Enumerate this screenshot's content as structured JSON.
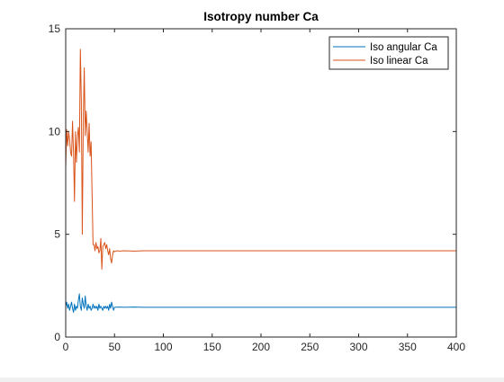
{
  "chart_data": {
    "type": "line",
    "title": "Isotropy number Ca",
    "xlabel": "",
    "ylabel": "",
    "xlim": [
      0,
      400
    ],
    "ylim": [
      0,
      15
    ],
    "xticks": [
      0,
      50,
      100,
      150,
      200,
      250,
      300,
      350,
      400
    ],
    "yticks": [
      0,
      5,
      10,
      15
    ],
    "grid": false,
    "legend_position": "top-right",
    "series": [
      {
        "name": "Iso angular Ca",
        "color": "#0072BD",
        "x": [
          0,
          1,
          2,
          3,
          4,
          5,
          6,
          7,
          8,
          9,
          10,
          11,
          12,
          13,
          14,
          15,
          16,
          17,
          18,
          19,
          20,
          21,
          22,
          23,
          24,
          25,
          26,
          27,
          28,
          29,
          30,
          31,
          32,
          33,
          34,
          35,
          36,
          37,
          38,
          39,
          40,
          41,
          42,
          43,
          44,
          45,
          46,
          47,
          48,
          49,
          50,
          55,
          60,
          70,
          80,
          100,
          150,
          200,
          250,
          300,
          350,
          400
        ],
        "y": [
          1.5,
          1.7,
          1.4,
          1.6,
          1.3,
          1.5,
          1.7,
          1.4,
          1.2,
          1.6,
          1.3,
          1.5,
          1.4,
          1.8,
          2.1,
          1.5,
          1.3,
          1.9,
          1.6,
          1.4,
          2.0,
          1.5,
          1.3,
          1.6,
          1.4,
          1.5,
          1.3,
          1.4,
          1.6,
          1.4,
          1.5,
          1.4,
          1.5,
          1.3,
          1.6,
          1.4,
          1.5,
          1.4,
          1.3,
          1.5,
          1.4,
          1.5,
          1.4,
          1.5,
          1.3,
          1.6,
          1.4,
          1.7,
          1.5,
          1.3,
          1.45,
          1.46,
          1.45,
          1.46,
          1.45,
          1.45,
          1.45,
          1.45,
          1.45,
          1.45,
          1.45,
          1.45
        ]
      },
      {
        "name": "Iso linear Ca",
        "color": "#D95319",
        "x": [
          0,
          1,
          2,
          3,
          4,
          5,
          6,
          7,
          8,
          9,
          10,
          11,
          12,
          13,
          14,
          15,
          16,
          17,
          18,
          19,
          20,
          21,
          22,
          23,
          24,
          25,
          26,
          27,
          28,
          29,
          30,
          31,
          32,
          33,
          34,
          35,
          36,
          37,
          38,
          39,
          40,
          41,
          42,
          43,
          44,
          45,
          46,
          47,
          48,
          49,
          50,
          52,
          55,
          60,
          70,
          80,
          100,
          150,
          200,
          250,
          300,
          350,
          400
        ],
        "y": [
          8.2,
          10.1,
          9.3,
          10.0,
          9.6,
          9.0,
          8.8,
          10.5,
          9.0,
          6.6,
          10.0,
          8.5,
          9.8,
          10.2,
          9.0,
          14.0,
          11.5,
          5.0,
          10.5,
          13.1,
          9.8,
          11.0,
          10.0,
          9.0,
          10.4,
          8.8,
          9.5,
          7.0,
          4.5,
          4.5,
          4.2,
          4.6,
          4.3,
          4.4,
          4.1,
          4.2,
          4.8,
          3.3,
          4.4,
          4.5,
          4.6,
          4.3,
          4.5,
          4.2,
          4.0,
          4.3,
          3.8,
          3.6,
          4.0,
          4.2,
          4.15,
          4.2,
          4.18,
          4.2,
          4.18,
          4.2,
          4.2,
          4.2,
          4.2,
          4.2,
          4.2,
          4.2,
          4.2
        ]
      }
    ]
  }
}
